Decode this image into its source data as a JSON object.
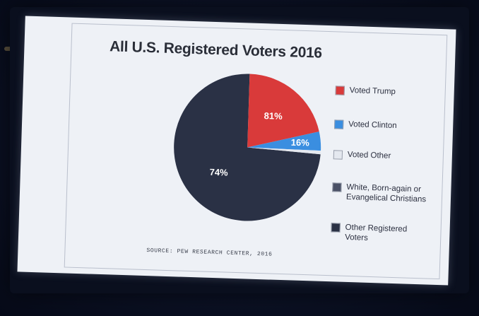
{
  "chart_data": {
    "type": "pie",
    "title": "All U.S. Registered Voters 2016",
    "source": "SOURCE: PEW RESEARCH CENTER, 2016",
    "outer_slices": [
      {
        "name": "White, Born-again or Evangelical Christians",
        "value": 26,
        "color": "#3e4559"
      },
      {
        "name": "Other Registered Voters",
        "value": 74,
        "color": "#2a3145",
        "label": "74%"
      }
    ],
    "inner_breakdown": {
      "parent": "White, Born-again or Evangelical Christians",
      "slices": [
        {
          "name": "Voted Trump",
          "value": 81,
          "color": "#d93a3a",
          "label": "81%"
        },
        {
          "name": "Voted Clinton",
          "value": 16,
          "color": "#3a8ee0",
          "label": "16%"
        },
        {
          "name": "Voted Other",
          "value": 3,
          "color": "#e4e8ef"
        }
      ]
    },
    "legend": [
      {
        "label": "Voted Trump",
        "color": "#d93a3a"
      },
      {
        "label": "Voted Clinton",
        "color": "#3a8ee0"
      },
      {
        "label": "Voted Other",
        "color": "#e4e8ef"
      },
      {
        "label": "White, Born-again or Evangelical Christians",
        "color": "#4a5166"
      },
      {
        "label": "Other Registered Voters",
        "color": "#2a3145"
      }
    ],
    "legend_placement": "right"
  }
}
